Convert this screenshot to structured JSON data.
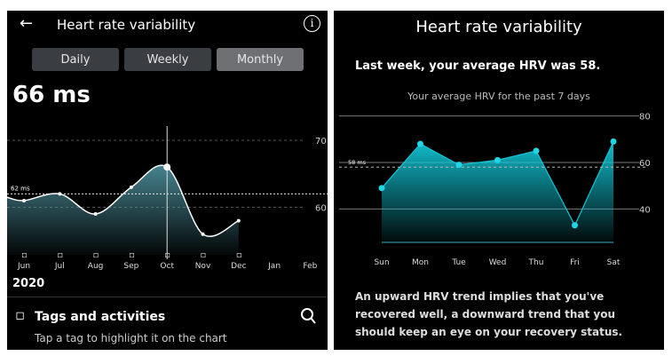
{
  "left": {
    "title": "Heart rate variability",
    "back_icon": "arrow-left-icon",
    "info_icon": "info-icon",
    "tabs": [
      {
        "label": "Daily",
        "active": false
      },
      {
        "label": "Weekly",
        "active": false
      },
      {
        "label": "Monthly",
        "active": true
      }
    ],
    "current_value": "66 ms",
    "year": "2020",
    "tags_title": "Tags and activities",
    "tags_hint": "Tap a tag to highlight it on the chart",
    "tag_icon": "tag-icon",
    "search_icon": "search-icon"
  },
  "right": {
    "title": "Heart rate variability",
    "summary": "Last week, your average HRV was 58.",
    "chart_caption": "Your average HRV for the past 7 days",
    "note": "An upward HRV trend implies that you've recovered well, a downward trend that you should keep an eye on your recovery status."
  },
  "chart_data": [
    {
      "type": "area",
      "categories": [
        "Jun",
        "Jul",
        "Aug",
        "Sep",
        "Oct",
        "Nov",
        "Dec",
        "Jan",
        "Feb"
      ],
      "values": [
        61,
        62,
        59,
        63,
        66,
        56,
        58,
        null,
        null
      ],
      "yticks": [
        60,
        70
      ],
      "average": 62,
      "average_label": "62 ms",
      "selected": "Oct",
      "smooth": true,
      "color": "#4a8a96"
    },
    {
      "type": "area",
      "categories": [
        "Sun",
        "Mon",
        "Tue",
        "Wed",
        "Thu",
        "Fri",
        "Sat"
      ],
      "values": [
        49,
        68,
        59,
        61,
        65,
        33,
        69
      ],
      "yticks": [
        40,
        60,
        80
      ],
      "average": 58,
      "average_label": "58 ms",
      "color": "#12c6d6"
    }
  ]
}
